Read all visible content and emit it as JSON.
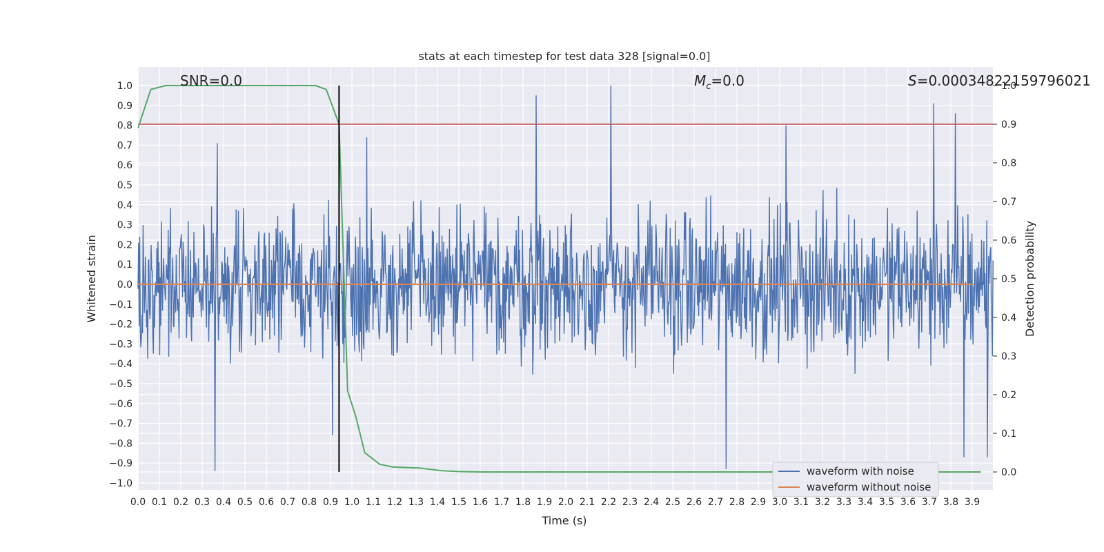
{
  "chart_data": {
    "type": "line",
    "title": "stats at each timestep for test data 328 [signal=0.0]",
    "xlabel": "Time (s)",
    "ylabel": "Whitened strain",
    "y2label": "Detection probability",
    "xlim": [
      0.0,
      4.0
    ],
    "ylim": [
      -1.05,
      1.1
    ],
    "y2lim": [
      -0.05,
      1.05
    ],
    "x_ticks": [
      "0.0",
      "0.1",
      "0.2",
      "0.3",
      "0.4",
      "0.5",
      "0.6",
      "0.7",
      "0.8",
      "0.9",
      "1.0",
      "1.1",
      "1.2",
      "1.3",
      "1.4",
      "1.5",
      "1.6",
      "1.7",
      "1.8",
      "1.9",
      "2.0",
      "2.1",
      "2.2",
      "2.3",
      "2.4",
      "2.5",
      "2.6",
      "2.7",
      "2.8",
      "2.9",
      "3.0",
      "3.1",
      "3.2",
      "3.3",
      "3.4",
      "3.5",
      "3.6",
      "3.7",
      "3.8",
      "3.9"
    ],
    "y_ticks": [
      "1.0",
      "0.9",
      "0.8",
      "0.7",
      "0.6",
      "0.5",
      "0.4",
      "0.3",
      "0.2",
      "0.1",
      "0.0",
      "-0.1",
      "-0.2",
      "-0.3",
      "-0.4",
      "-0.5",
      "-0.6",
      "-0.7",
      "-0.8",
      "-0.9",
      "-1.0"
    ],
    "y2_ticks": [
      "1.0",
      "0.9",
      "0.8",
      "0.7",
      "0.6",
      "0.5",
      "0.4",
      "0.3",
      "0.2",
      "0.1",
      "0.0"
    ],
    "annotations": {
      "snr": "SNR=0.0",
      "mc_symbol": "M",
      "mc_sub": "c",
      "mc_value": "=0.0",
      "s_symbol": "S",
      "s_value": "=0.00034822159796021"
    },
    "legend": {
      "placement": "lower-right",
      "entries": [
        "waveform with noise",
        "waveform without noise"
      ]
    },
    "grid": true,
    "series": [
      {
        "name": "waveform with noise",
        "axis": "left",
        "color": "#4c72b0",
        "peaks": [
          {
            "x": 0.36,
            "y": -0.94
          },
          {
            "x": 0.37,
            "y": 0.71
          },
          {
            "x": 0.91,
            "y": -0.76
          },
          {
            "x": 1.07,
            "y": 0.74
          },
          {
            "x": 1.86,
            "y": 0.95
          },
          {
            "x": 2.21,
            "y": 1.0
          },
          {
            "x": 2.75,
            "y": -0.93
          },
          {
            "x": 3.03,
            "y": 0.8
          },
          {
            "x": 3.72,
            "y": 0.91
          },
          {
            "x": 3.82,
            "y": 0.86
          },
          {
            "x": 3.86,
            "y": -0.87
          },
          {
            "x": 3.97,
            "y": -0.87
          }
        ],
        "envelope": 0.45
      },
      {
        "name": "waveform without noise",
        "axis": "left",
        "color": "#dd8452",
        "x": [
          0.0,
          4.0
        ],
        "y": [
          0.0,
          0.0
        ]
      },
      {
        "axis": "right",
        "color": "#55a868",
        "x": [
          0.0,
          0.06,
          0.13,
          0.19,
          0.26,
          0.32,
          0.38,
          0.45,
          0.51,
          0.57,
          0.64,
          0.7,
          0.77,
          0.83,
          0.88,
          0.94,
          0.98,
          1.02,
          1.06,
          1.13,
          1.19,
          1.32,
          1.42,
          1.5,
          1.6,
          2.0,
          2.5,
          3.0,
          3.5,
          3.94
        ],
        "y": [
          0.89,
          0.99,
          1.0,
          1.0,
          1.0,
          1.0,
          1.0,
          1.0,
          1.0,
          1.0,
          1.0,
          1.0,
          1.0,
          1.0,
          0.99,
          0.9,
          0.21,
          0.14,
          0.05,
          0.02,
          0.013,
          0.01,
          0.003,
          0.001,
          0.0,
          0.0,
          0.0,
          0.0,
          0.0,
          0.0
        ]
      }
    ],
    "threshold": {
      "axis": "right",
      "y": 0.9,
      "color": "#c44e52"
    },
    "vline": {
      "x": 0.94,
      "color": "#000000"
    }
  }
}
